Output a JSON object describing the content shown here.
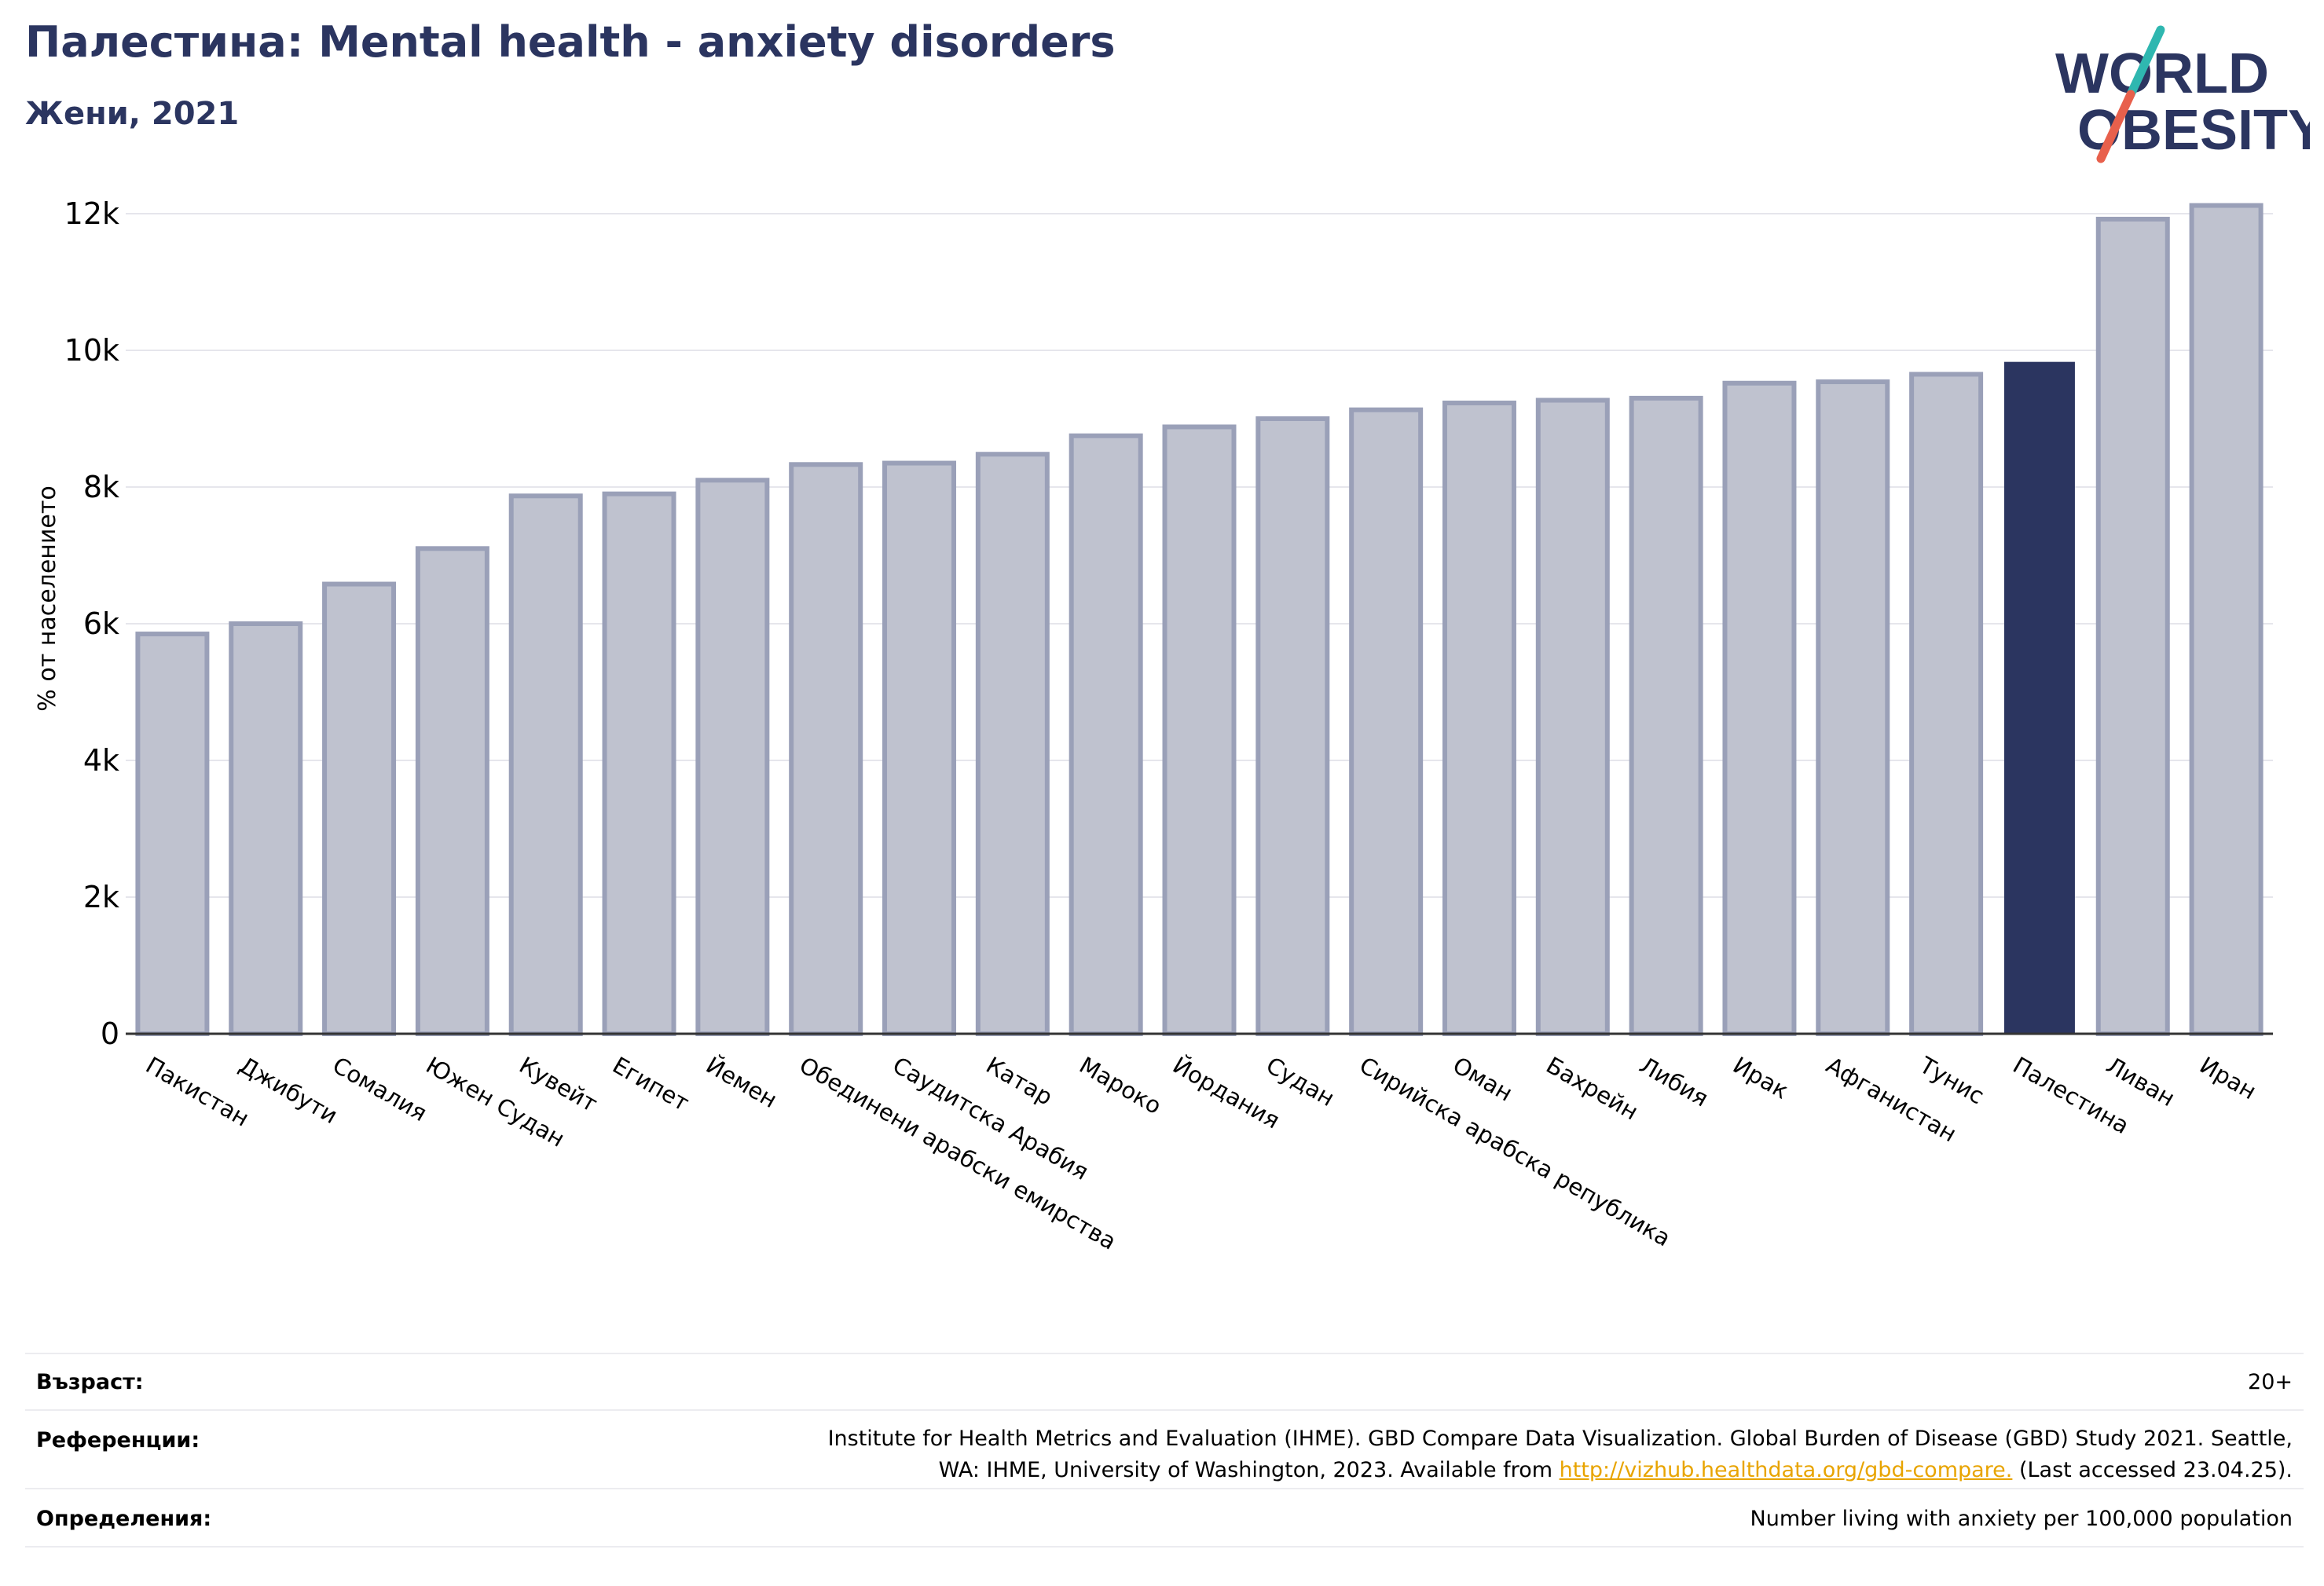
{
  "header": {
    "title": "Палестина: Mental health - anxiety disorders",
    "subtitle": "Жени, 2021"
  },
  "logo": {
    "line1": "WORLD",
    "line2": "OBESITY",
    "colors": {
      "text": "#2b3560",
      "slash_teal": "#2fb7b0",
      "slash_red": "#e8604c"
    }
  },
  "colors": {
    "bar_fill": "#bfc2cf",
    "bar_stroke": "#9aa0b8",
    "highlight": "#2b3560",
    "grid": "#e6e6ec",
    "axis": "#333333"
  },
  "chart_data": {
    "type": "bar",
    "title": "Палестина: Mental health - anxiety disorders",
    "subtitle": "Жени, 2021",
    "ylabel": "% от населението",
    "xlabel": "",
    "ylim": [
      0,
      12500
    ],
    "yticks": [
      0,
      2000,
      4000,
      6000,
      8000,
      10000,
      12000
    ],
    "ytick_labels": [
      "0",
      "2k",
      "4k",
      "6k",
      "8k",
      "10k",
      "12k"
    ],
    "grid": true,
    "highlight_category": "Палестина",
    "categories": [
      "Пакистан",
      "Джибути",
      "Сомалия",
      "Южен Судан",
      "Кувейт",
      "Египет",
      "Йемен",
      "Обединени арабски емирства",
      "Саудитска Арабия",
      "Катар",
      "Мароко",
      "Йордания",
      "Судан",
      "Сирийска арабска република",
      "Оман",
      "Бахрейн",
      "Либия",
      "Ирак",
      "Афганистан",
      "Тунис",
      "Палестина",
      "Ливан",
      "Иран"
    ],
    "values": [
      5850,
      6000,
      6580,
      7100,
      7870,
      7900,
      8100,
      8330,
      8350,
      8480,
      8750,
      8880,
      9000,
      9130,
      9230,
      9270,
      9300,
      9520,
      9540,
      9650,
      9820,
      11920,
      12120
    ]
  },
  "footer": {
    "rows": [
      {
        "label": "Възраст:",
        "value": "20+"
      },
      {
        "label": "Референции:",
        "value_line1": "Institute for Health Metrics and Evaluation (IHME). GBD Compare Data Visualization. Global Burden of Disease (GBD) Study 2021. Seattle,",
        "value_line2_pre": "WA: IHME, University of Washington, 2023. Available from ",
        "link": "http://vizhub.healthdata.org/gbd-compare.",
        "value_line2_post": " (Last accessed 23.04.25)."
      },
      {
        "label": "Определения:",
        "value": "Number living with anxiety per 100,000 population"
      }
    ]
  }
}
